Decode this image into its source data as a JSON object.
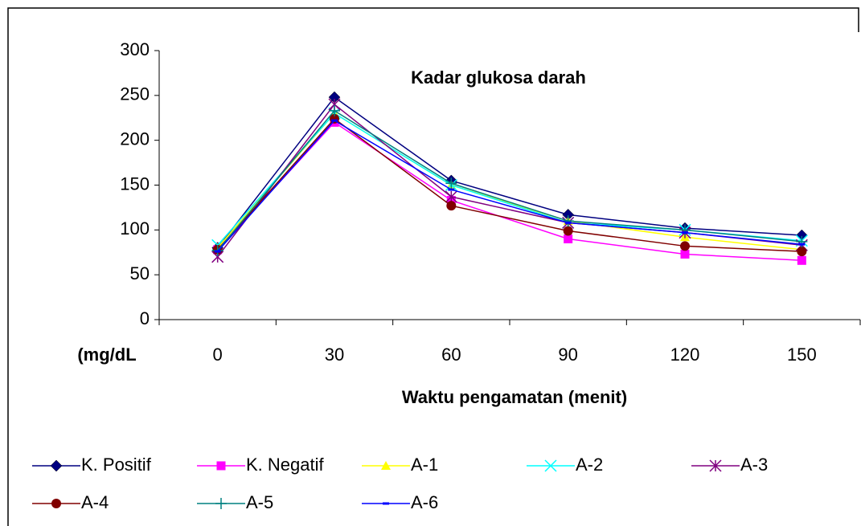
{
  "chart_data": {
    "type": "line",
    "title": "Kadar glukosa darah",
    "x_label": "Waktu pengamatan (menit)",
    "y_label": "(mg/dL",
    "categories": [
      "0",
      "30",
      "60",
      "90",
      "120",
      "150"
    ],
    "ylim": [
      0,
      300
    ],
    "yticks": [
      0,
      50,
      100,
      150,
      200,
      250,
      300
    ],
    "series": [
      {
        "name": "K. Positif",
        "color": "#000080",
        "marker": "diamond",
        "values": [
          80,
          248,
          155,
          117,
          102,
          94
        ]
      },
      {
        "name": "K. Negatif",
        "color": "#ff00ff",
        "marker": "square",
        "values": [
          78,
          220,
          133,
          90,
          73,
          66
        ]
      },
      {
        "name": "A-1",
        "color": "#ffff00",
        "marker": "triangle",
        "values": [
          80,
          230,
          150,
          110,
          92,
          78
        ]
      },
      {
        "name": "A-2",
        "color": "#00ffff",
        "marker": "x",
        "values": [
          83,
          230,
          150,
          108,
          100,
          88
        ]
      },
      {
        "name": "A-3",
        "color": "#800080",
        "marker": "star",
        "values": [
          70,
          240,
          137,
          108,
          97,
          83
        ]
      },
      {
        "name": "A-4",
        "color": "#800000",
        "marker": "circle",
        "values": [
          78,
          224,
          127,
          99,
          82,
          76
        ]
      },
      {
        "name": "A-5",
        "color": "#008080",
        "marker": "plus",
        "values": [
          77,
          233,
          152,
          110,
          100,
          87
        ]
      },
      {
        "name": "A-6",
        "color": "#0000ff",
        "marker": "dash",
        "values": [
          76,
          222,
          145,
          108,
          97,
          84
        ]
      }
    ]
  }
}
